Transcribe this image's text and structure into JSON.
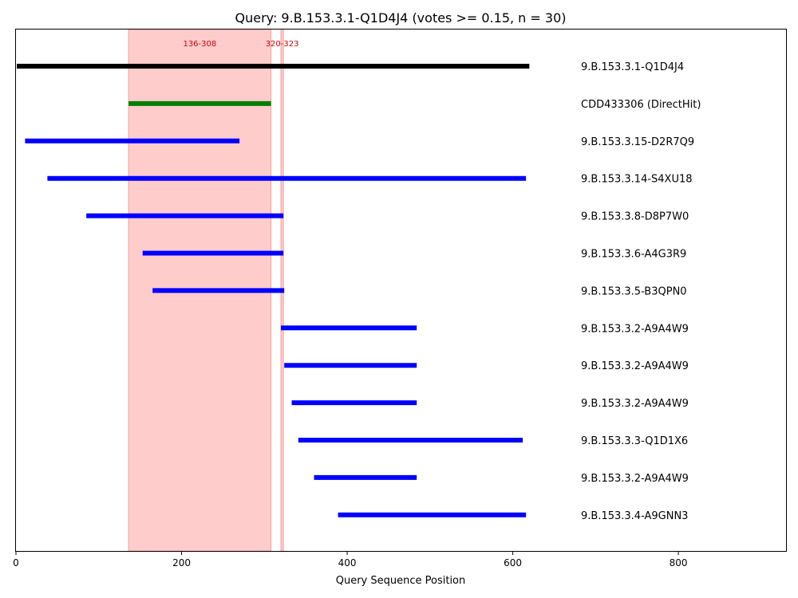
{
  "chart_data": {
    "type": "bar",
    "title": "Query: 9.B.153.3.1-Q1D4J4 (votes >= 0.15, n = 30)",
    "xlabel": "Query Sequence Position",
    "ylabel": "",
    "xlim": [
      0,
      930
    ],
    "x_ticks": [
      0,
      200,
      400,
      600,
      800
    ],
    "grid": false,
    "regions": [
      {
        "label": "136-308",
        "start": 136,
        "end": 308,
        "color": "#ffcccc"
      },
      {
        "label": "320-323",
        "start": 320,
        "end": 323,
        "color": "#ffcccc"
      }
    ],
    "series": [
      {
        "label": "9.B.153.3.1-Q1D4J4",
        "start": 1,
        "end": 620,
        "color": "#000000"
      },
      {
        "label": "CDD433306 (DirectHit)",
        "start": 136,
        "end": 308,
        "color": "#008000"
      },
      {
        "label": "9.B.153.3.15-D2R7Q9",
        "start": 11,
        "end": 270,
        "color": "#0000ff"
      },
      {
        "label": "9.B.153.3.14-S4XU18",
        "start": 38,
        "end": 616,
        "color": "#0000ff"
      },
      {
        "label": "9.B.153.3.8-D8P7W0",
        "start": 85,
        "end": 323,
        "color": "#0000ff"
      },
      {
        "label": "9.B.153.3.6-A4G3R9",
        "start": 153,
        "end": 323,
        "color": "#0000ff"
      },
      {
        "label": "9.B.153.3.5-B3QPN0",
        "start": 165,
        "end": 324,
        "color": "#0000ff"
      },
      {
        "label": "9.B.153.3.2-A9A4W9",
        "start": 320,
        "end": 484,
        "color": "#0000ff"
      },
      {
        "label": "9.B.153.3.2-A9A4W9",
        "start": 324,
        "end": 484,
        "color": "#0000ff"
      },
      {
        "label": "9.B.153.3.2-A9A4W9",
        "start": 333,
        "end": 484,
        "color": "#0000ff"
      },
      {
        "label": "9.B.153.3.3-Q1D1X6",
        "start": 341,
        "end": 612,
        "color": "#0000ff"
      },
      {
        "label": "9.B.153.3.2-A9A4W9",
        "start": 360,
        "end": 484,
        "color": "#0000ff"
      },
      {
        "label": "9.B.153.3.4-A9GNN3",
        "start": 389,
        "end": 616,
        "color": "#0000ff"
      }
    ]
  }
}
